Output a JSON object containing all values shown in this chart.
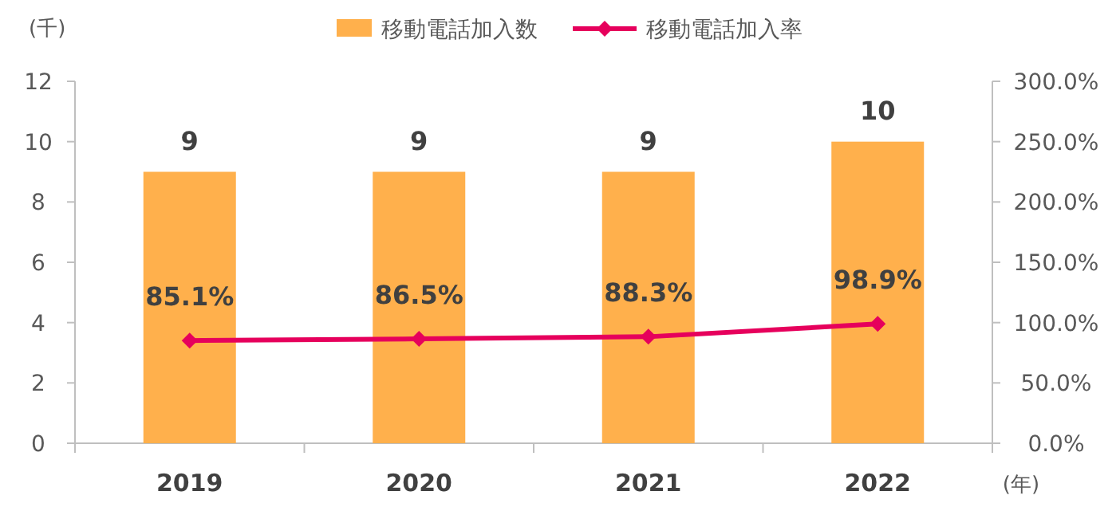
{
  "chart_data": {
    "type": "bar",
    "ylabel": "(千)",
    "xlabel": "(年)",
    "categories": [
      "2019",
      "2020",
      "2021",
      "2022"
    ],
    "series": [
      {
        "name": "移動電話加入数",
        "color": "#ffb04c",
        "values": [
          9,
          9,
          9,
          10
        ],
        "value_labels": [
          "9",
          "9",
          "9",
          "10"
        ]
      },
      {
        "name": "移動電話加入率",
        "type": "line",
        "axis": "y2",
        "color": "#e6005c",
        "marker": "diamond",
        "values": [
          85.1,
          86.5,
          88.3,
          98.9
        ],
        "value_labels": [
          "85.1%",
          "86.5%",
          "88.3%",
          "98.9%"
        ]
      }
    ],
    "ylim": [
      0,
      12
    ],
    "yticks": [
      0,
      2,
      4,
      6,
      8,
      10,
      12
    ],
    "y2lim": [
      0,
      300
    ],
    "y2ticks": [
      {
        "value": 0,
        "label": "0.0%"
      },
      {
        "value": 50,
        "label": "50.0%"
      },
      {
        "value": 100,
        "label": "100.0%"
      },
      {
        "value": 150,
        "label": "150.0%"
      },
      {
        "value": 200,
        "label": "200.0%"
      },
      {
        "value": 250,
        "label": "250.0%"
      },
      {
        "value": 300,
        "label": "300.0%"
      }
    ],
    "grid": false,
    "legend": "top"
  }
}
